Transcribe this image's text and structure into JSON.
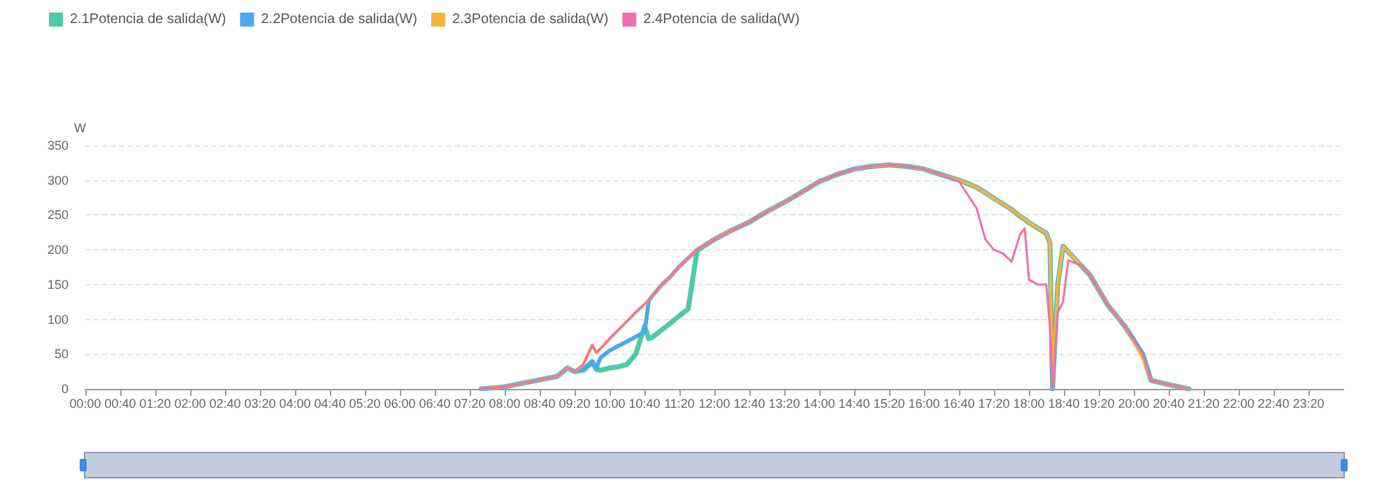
{
  "chart_data": {
    "type": "line",
    "ylabel": "W",
    "legend": "top left",
    "grid": "y",
    "marker": "none",
    "line_style": "solid",
    "xlim": [
      0,
      24
    ],
    "ylim": [
      0,
      350
    ],
    "yticks": [
      0,
      50,
      100,
      150,
      200,
      250,
      300,
      350
    ],
    "xticks": [
      {
        "value": 0,
        "label": "00:00"
      },
      {
        "value": 0.6667,
        "label": "00:40"
      },
      {
        "value": 1.3333,
        "label": "01:20"
      },
      {
        "value": 2,
        "label": "02:00"
      },
      {
        "value": 2.6667,
        "label": "02:40"
      },
      {
        "value": 3.3333,
        "label": "03:20"
      },
      {
        "value": 4,
        "label": "04:00"
      },
      {
        "value": 4.6667,
        "label": "04:40"
      },
      {
        "value": 5.3333,
        "label": "05:20"
      },
      {
        "value": 6,
        "label": "06:00"
      },
      {
        "value": 6.6667,
        "label": "06:40"
      },
      {
        "value": 7.3333,
        "label": "07:20"
      },
      {
        "value": 8,
        "label": "08:00"
      },
      {
        "value": 8.6667,
        "label": "08:40"
      },
      {
        "value": 9.3333,
        "label": "09:20"
      },
      {
        "value": 10,
        "label": "10:00"
      },
      {
        "value": 10.6667,
        "label": "10:40"
      },
      {
        "value": 11.3333,
        "label": "11:20"
      },
      {
        "value": 12,
        "label": "12:00"
      },
      {
        "value": 12.6667,
        "label": "12:40"
      },
      {
        "value": 13.3333,
        "label": "13:20"
      },
      {
        "value": 14,
        "label": "14:00"
      },
      {
        "value": 14.6667,
        "label": "14:40"
      },
      {
        "value": 15.3333,
        "label": "15:20"
      },
      {
        "value": 16,
        "label": "16:00"
      },
      {
        "value": 16.6667,
        "label": "16:40"
      },
      {
        "value": 17.3333,
        "label": "17:20"
      },
      {
        "value": 18,
        "label": "18:00"
      },
      {
        "value": 18.6667,
        "label": "18:40"
      },
      {
        "value": 19.3333,
        "label": "19:20"
      },
      {
        "value": 20,
        "label": "20:00"
      },
      {
        "value": 20.6667,
        "label": "20:40"
      },
      {
        "value": 21.3333,
        "label": "21:20"
      },
      {
        "value": 22,
        "label": "22:00"
      },
      {
        "value": 22.6667,
        "label": "22:40"
      },
      {
        "value": 23.3333,
        "label": "23:20"
      }
    ],
    "x": [
      7.55,
      8,
      8.33,
      8.67,
      9,
      9.2,
      9.33,
      9.5,
      9.67,
      9.75,
      9.83,
      10,
      10.17,
      10.33,
      10.5,
      10.67,
      10.75,
      10.83,
      11,
      11.17,
      11.33,
      11.5,
      11.67,
      12,
      12.33,
      12.67,
      13,
      13.33,
      13.67,
      14,
      14.33,
      14.67,
      15,
      15.33,
      15.67,
      16,
      16.33,
      16.67,
      17,
      17.17,
      17.33,
      17.5,
      17.67,
      17.83,
      17.92,
      18,
      18.17,
      18.33,
      18.4,
      18.45,
      18.55,
      18.65,
      18.75,
      19,
      19.17,
      19.5,
      19.83,
      20.17,
      20.33,
      20.67,
      21.05
    ],
    "series": [
      {
        "name": "2.1Potencia de salida(W)",
        "color": "#4fc9a8",
        "values": [
          0,
          3,
          8,
          13,
          18,
          30,
          25,
          27,
          38,
          28,
          27,
          30,
          32,
          35,
          50,
          90,
          72,
          75,
          85,
          95,
          105,
          115,
          199,
          215,
          228,
          240,
          255,
          268,
          283,
          298,
          308,
          316,
          320,
          322,
          320,
          316,
          308,
          300,
          290,
          282,
          274,
          266,
          258,
          248,
          244,
          239,
          231,
          224,
          210,
          0,
          150,
          205,
          197,
          177,
          163,
          121,
          90,
          50,
          12,
          6,
          0
        ]
      },
      {
        "name": "2.2Potencia de salida(W)",
        "color": "#4aa8ee",
        "values": [
          0,
          3,
          8,
          13,
          18,
          30,
          25,
          28,
          40,
          30,
          45,
          55,
          62,
          68,
          75,
          82,
          127,
          135,
          150,
          162,
          176,
          188,
          200,
          215,
          228,
          240,
          255,
          268,
          283,
          298,
          308,
          316,
          320,
          322,
          320,
          316,
          308,
          300,
          290,
          282,
          274,
          266,
          258,
          248,
          244,
          239,
          231,
          224,
          210,
          0,
          150,
          205,
          197,
          177,
          163,
          121,
          90,
          50,
          12,
          6,
          0
        ]
      },
      {
        "name": "2.3Potencia de salida(W)",
        "color": "#f5b53a",
        "values": [
          0,
          3,
          8,
          13,
          18,
          30,
          25,
          35,
          63,
          52,
          58,
          72,
          85,
          97,
          110,
          122,
          128,
          135,
          150,
          162,
          176,
          188,
          200,
          215,
          228,
          240,
          255,
          268,
          283,
          298,
          308,
          316,
          320,
          322,
          320,
          316,
          308,
          300,
          290,
          282,
          274,
          266,
          258,
          248,
          244,
          239,
          231,
          224,
          210,
          0,
          150,
          205,
          197,
          177,
          163,
          121,
          90,
          45,
          12,
          6,
          0
        ]
      },
      {
        "name": "2.4Potencia de salida(W)",
        "color": "#ee6fae",
        "values": [
          0,
          3,
          8,
          13,
          18,
          30,
          25,
          35,
          63,
          52,
          58,
          72,
          85,
          97,
          110,
          122,
          128,
          135,
          150,
          162,
          176,
          188,
          200,
          215,
          228,
          240,
          255,
          268,
          283,
          298,
          308,
          316,
          320,
          322,
          320,
          316,
          308,
          298,
          260,
          215,
          200,
          195,
          183,
          222,
          231,
          157,
          150,
          150,
          90,
          0,
          110,
          125,
          185,
          177,
          163,
          121,
          90,
          50,
          12,
          6,
          0
        ]
      }
    ]
  }
}
